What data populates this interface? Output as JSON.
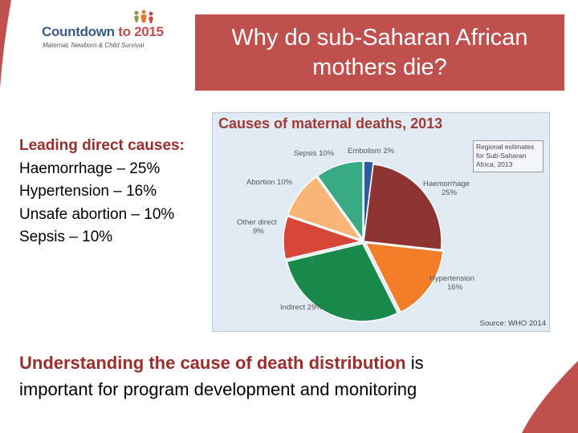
{
  "logo": {
    "main_text": "Countdown ",
    "year_text": "to 2015",
    "subtitle": "Maternal, Newborn & Child Survival"
  },
  "slide": {
    "title_line1": "Why do sub-Saharan African",
    "title_line2": "mothers die?"
  },
  "causes": {
    "heading": "Leading direct causes:",
    "items": [
      "Haemorrhage – 25%",
      "Hypertension – 16%",
      "Unsafe abortion – 10%",
      "Sepsis – 10%"
    ]
  },
  "bottom": {
    "emphasis": "Understanding the cause of death distribution",
    "rest_line1": " is",
    "line2": "important for program development and monitoring"
  },
  "colors": {
    "accent": "#c0504d",
    "heading_red": "#9b2d2a",
    "chart_bg": "#e1ebf4"
  },
  "chart_data": {
    "type": "pie",
    "title": "Causes of maternal deaths, 2013",
    "note_lines": [
      "Regional estimates",
      "for Sub-Saharan",
      "Africa, 2013"
    ],
    "source": "Source: WHO 2014",
    "unit": "%",
    "slices": [
      {
        "label": "Embolism",
        "value_label": "2%",
        "value": 2,
        "color": "#2e5c9e"
      },
      {
        "label": "Haemorrhage",
        "value_label": "25%",
        "value": 25,
        "color": "#8e3430"
      },
      {
        "label": "Hypertension",
        "value_label": "16%",
        "value": 16,
        "color": "#f47d2a"
      },
      {
        "label": "Indirect",
        "value_label": "29%",
        "value": 29,
        "color": "#1a8a4c"
      },
      {
        "label": "Other direct",
        "value_label": "9%",
        "value": 9,
        "color": "#d8463a"
      },
      {
        "label": "Abortion",
        "value_label": "10%",
        "value": 10,
        "color": "#f9b478"
      },
      {
        "label": "Sepsis",
        "value_label": "10%",
        "value": 10,
        "color": "#3aaa84"
      }
    ]
  }
}
